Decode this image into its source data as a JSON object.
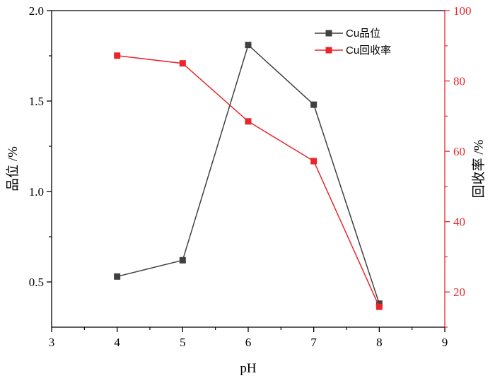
{
  "chart_data": {
    "type": "line",
    "x": [
      4,
      5,
      6,
      7,
      8
    ],
    "xlabel": "pH",
    "xlim": [
      3,
      9
    ],
    "xticks": [
      3,
      4,
      5,
      6,
      7,
      8,
      9
    ],
    "ylabel_left": "品位 /%",
    "ylim_left": [
      0.25,
      2.0
    ],
    "yticks_left": [
      0.5,
      1.0,
      1.5,
      2.0
    ],
    "ylabel_right": "回收率 /%",
    "ylim_right": [
      10,
      100
    ],
    "yticks_right": [
      20,
      40,
      60,
      80,
      100
    ],
    "series": [
      {
        "name": "Cu品位",
        "axis": "left",
        "color": "#404040",
        "marker": "square",
        "values": [
          0.53,
          0.62,
          1.81,
          1.48,
          0.38
        ]
      },
      {
        "name": "Cu回收率",
        "axis": "right",
        "color": "#e8262b",
        "marker": "square",
        "values": [
          87.2,
          85.0,
          68.5,
          57.2,
          15.8
        ]
      }
    ],
    "grid": false,
    "legend_position": "top-right",
    "right_axis_color": "#e8262b"
  }
}
